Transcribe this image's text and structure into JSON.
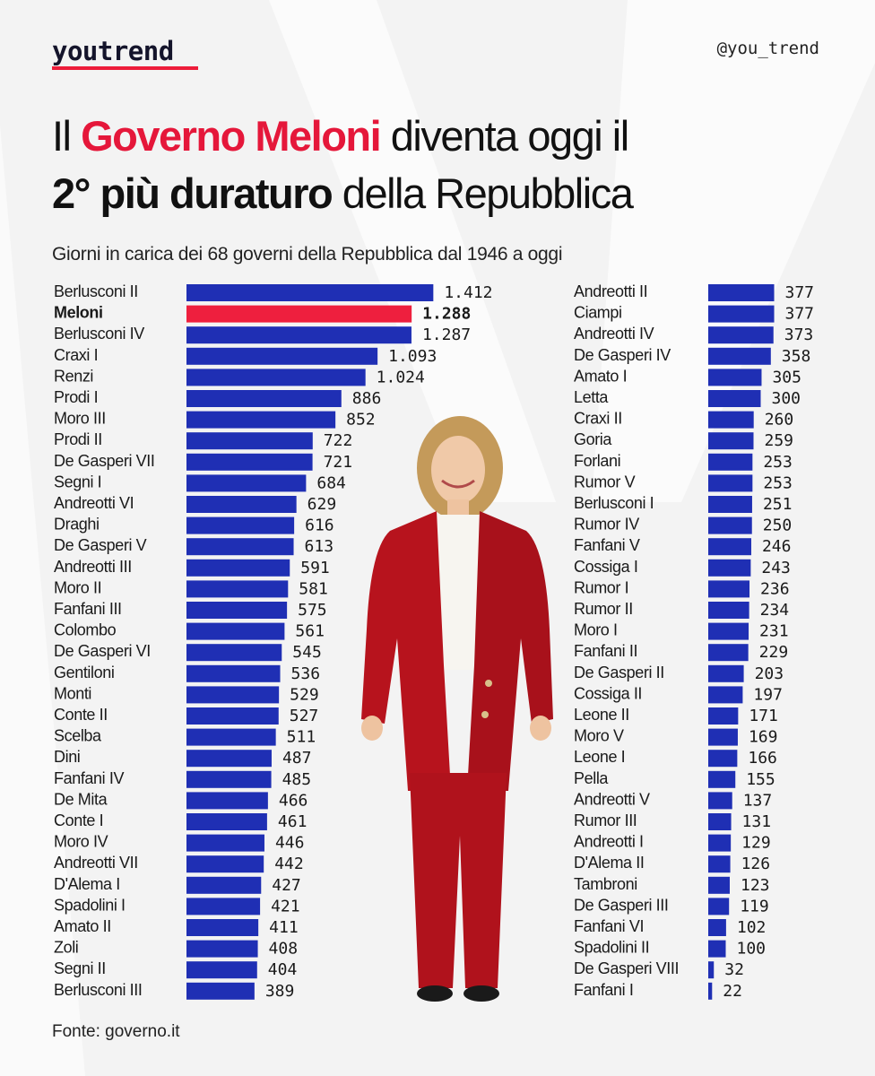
{
  "header": {
    "logo": "youtrend",
    "handle": "@you_trend"
  },
  "title": {
    "line1_prefix": "Il ",
    "line1_highlight": "Governo Meloni",
    "line1_suffix": " diventa oggi il",
    "line2_bold": "2° più duraturo",
    "line2_suffix": " della Repubblica"
  },
  "subtitle": "Giorni in carica dei 68 governi della Repubblica dal 1946 a oggi",
  "source": "Fonte: governo.it",
  "colors": {
    "bar": "#1f2fb4",
    "highlight": "#ee1f3e",
    "accent_text": "#e5173a"
  },
  "chart_data": {
    "type": "bar",
    "orientation": "horizontal",
    "unit": "giorni in carica",
    "highlight": "Meloni",
    "columns": [
      {
        "categories": [
          "Berlusconi II",
          "Meloni",
          "Berlusconi IV",
          "Craxi I",
          "Renzi",
          "Prodi I",
          "Moro III",
          "Prodi II",
          "De Gasperi VII",
          "Segni I",
          "Andreotti VI",
          "Draghi",
          "De Gasperi V",
          "Andreotti III",
          "Moro II",
          "Fanfani III",
          "Colombo",
          "De Gasperi VI",
          "Gentiloni",
          "Monti",
          "Conte II",
          "Scelba",
          "Dini",
          "Fanfani IV",
          "De Mita",
          "Conte I",
          "Moro IV",
          "Andreotti VII",
          "D'Alema I",
          "Spadolini I",
          "Amato II",
          "Zoli",
          "Segni II",
          "Berlusconi III"
        ],
        "values": [
          1412,
          1288,
          1287,
          1093,
          1024,
          886,
          852,
          722,
          721,
          684,
          629,
          616,
          613,
          591,
          581,
          575,
          561,
          545,
          536,
          529,
          527,
          511,
          487,
          485,
          466,
          461,
          446,
          442,
          427,
          421,
          411,
          408,
          404,
          389
        ],
        "labels": [
          "1.412",
          "1.288",
          "1.287",
          "1.093",
          "1.024",
          "886",
          "852",
          "722",
          "721",
          "684",
          "629",
          "616",
          "613",
          "591",
          "581",
          "575",
          "561",
          "545",
          "536",
          "529",
          "527",
          "511",
          "487",
          "485",
          "466",
          "461",
          "446",
          "442",
          "427",
          "421",
          "411",
          "408",
          "404",
          "389"
        ]
      },
      {
        "categories": [
          "Andreotti II",
          "Ciampi",
          "Andreotti IV",
          "De Gasperi IV",
          "Amato I",
          "Letta",
          "Craxi II",
          "Goria",
          "Forlani",
          "Rumor V",
          "Berlusconi I",
          "Rumor IV",
          "Fanfani V",
          "Cossiga I",
          "Rumor I",
          "Rumor II",
          "Moro I",
          "Fanfani II",
          "De Gasperi II",
          "Cossiga II",
          "Leone II",
          "Moro V",
          "Leone I",
          "Pella",
          "Andreotti V",
          "Rumor III",
          "Andreotti I",
          "D'Alema II",
          "Tambroni",
          "De Gasperi III",
          "Fanfani VI",
          "Spadolini II",
          "De Gasperi VIII",
          "Fanfani I"
        ],
        "values": [
          377,
          377,
          373,
          358,
          305,
          300,
          260,
          259,
          253,
          253,
          251,
          250,
          246,
          243,
          236,
          234,
          231,
          229,
          203,
          197,
          171,
          169,
          166,
          155,
          137,
          131,
          129,
          126,
          123,
          119,
          102,
          100,
          32,
          22
        ],
        "labels": [
          "377",
          "377",
          "373",
          "358",
          "305",
          "300",
          "260",
          "259",
          "253",
          "253",
          "251",
          "250",
          "246",
          "243",
          "236",
          "234",
          "231",
          "229",
          "203",
          "197",
          "171",
          "169",
          "166",
          "155",
          "137",
          "131",
          "129",
          "126",
          "123",
          "119",
          "102",
          "100",
          "32",
          "22"
        ]
      }
    ]
  }
}
